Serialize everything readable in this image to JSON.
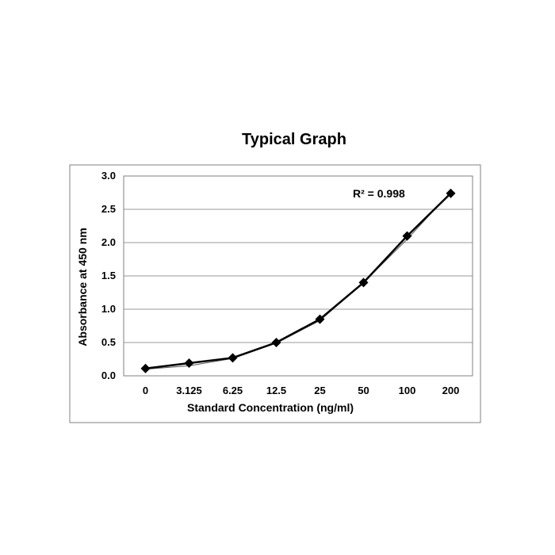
{
  "chart_data": {
    "type": "line",
    "title": "Typical Graph",
    "xlabel": "Standard Concentration (ng/ml)",
    "ylabel": "Absorbance at 450 nm",
    "categories": [
      "0",
      "3.125",
      "6.25",
      "12.5",
      "25",
      "50",
      "100",
      "200"
    ],
    "series": [
      {
        "values": [
          0.11,
          0.19,
          0.27,
          0.5,
          0.85,
          1.4,
          2.1,
          2.74
        ],
        "color": "#000000",
        "marker": "diamond"
      }
    ],
    "trendline": {
      "values": [
        0.1,
        0.15,
        0.26,
        0.49,
        0.83,
        1.4,
        2.05,
        2.76
      ],
      "color": "#555555"
    },
    "annotation": "R² = 0.998",
    "y_ticks": [
      "0.0",
      "0.5",
      "1.0",
      "1.5",
      "2.0",
      "2.5",
      "3.0"
    ],
    "ylim": [
      0,
      3
    ],
    "grid": "horizontal",
    "legend": "none"
  }
}
